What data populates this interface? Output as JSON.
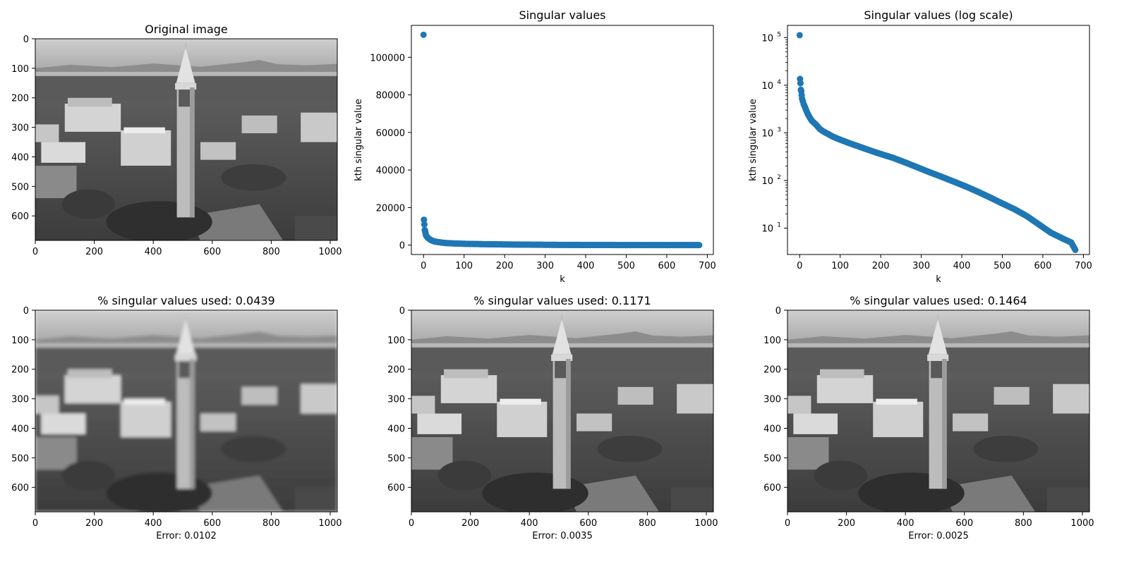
{
  "figure": {
    "panels": [
      {
        "kind": "image",
        "title": "Original image",
        "xticks": [
          "0",
          "200",
          "400",
          "600",
          "800",
          "1000"
        ],
        "yticks": [
          "0",
          "100",
          "200",
          "300",
          "400",
          "500",
          "600"
        ],
        "image": "original",
        "xlabel": ""
      },
      {
        "kind": "scatter",
        "title": "Singular values",
        "xlabel": "k",
        "ylabel": "kth singular value",
        "xticks": [
          "0",
          "100",
          "200",
          "300",
          "400",
          "500",
          "600",
          "700"
        ],
        "yticks": [
          "0",
          "20000",
          "40000",
          "60000",
          "80000",
          "100000"
        ],
        "scale": "linear"
      },
      {
        "kind": "scatter",
        "title": "Singular values (log scale)",
        "xlabel": "k",
        "ylabel": "kth singular value",
        "xticks": [
          "0",
          "100",
          "200",
          "300",
          "400",
          "500",
          "600",
          "700"
        ],
        "yticks": [
          "10",
          "10",
          "10",
          "10",
          "10"
        ],
        "yexps": [
          "1",
          "2",
          "3",
          "4",
          "5"
        ],
        "scale": "log"
      },
      {
        "kind": "image",
        "title": "% singular values used: 0.0439",
        "xticks": [
          "0",
          "200",
          "400",
          "600",
          "800",
          "1000"
        ],
        "yticks": [
          "0",
          "100",
          "200",
          "300",
          "400",
          "500",
          "600"
        ],
        "image": "blurry",
        "xlabel": "Error: 0.0102"
      },
      {
        "kind": "image",
        "title": "% singular values used: 0.1171",
        "xticks": [
          "0",
          "200",
          "400",
          "600",
          "800",
          "1000"
        ],
        "yticks": [
          "0",
          "100",
          "200",
          "300",
          "400",
          "500",
          "600"
        ],
        "image": "sharp",
        "xlabel": "Error: 0.0035"
      },
      {
        "kind": "image",
        "title": "% singular values used: 0.1464",
        "xticks": [
          "0",
          "200",
          "400",
          "600",
          "800",
          "1000"
        ],
        "yticks": [
          "0",
          "100",
          "200",
          "300",
          "400",
          "500",
          "600"
        ],
        "image": "sharp",
        "xlabel": "Error: 0.0025"
      }
    ]
  },
  "chart_data": [
    {
      "type": "scatter",
      "title": "Singular values",
      "xlabel": "k",
      "ylabel": "kth singular value",
      "xlim": [
        -30,
        715
      ],
      "ylim": [
        -5000,
        117000
      ],
      "yscale": "linear",
      "color": "#1f77b4",
      "x": [
        0,
        1,
        2,
        3,
        4,
        5,
        6,
        8,
        10,
        13,
        16,
        20,
        25,
        30,
        40,
        50,
        60,
        70,
        80,
        90,
        100,
        120,
        140,
        160,
        180,
        200,
        230,
        260,
        290,
        320,
        350,
        380,
        410,
        440,
        470,
        500,
        530,
        560,
        590,
        620,
        650,
        670,
        680
      ],
      "y": [
        112000,
        13500,
        11000,
        8000,
        7500,
        6200,
        5200,
        4600,
        4000,
        3500,
        3000,
        2500,
        2100,
        1800,
        1500,
        1200,
        1050,
        950,
        850,
        780,
        720,
        620,
        540,
        470,
        410,
        360,
        300,
        240,
        190,
        150,
        120,
        95,
        75,
        58,
        44,
        33,
        25,
        18,
        12,
        8,
        6,
        5,
        3.5
      ]
    },
    {
      "type": "scatter",
      "title": "Singular values (log scale)",
      "xlabel": "k",
      "ylabel": "kth singular value",
      "xlim": [
        -30,
        715
      ],
      "ylim": [
        2.8,
        180000
      ],
      "yscale": "log",
      "color": "#1f77b4",
      "x": [
        0,
        1,
        2,
        3,
        4,
        5,
        6,
        8,
        10,
        13,
        16,
        20,
        25,
        30,
        40,
        50,
        60,
        70,
        80,
        90,
        100,
        120,
        140,
        160,
        180,
        200,
        230,
        260,
        290,
        320,
        350,
        380,
        410,
        440,
        470,
        500,
        530,
        560,
        590,
        620,
        650,
        670,
        680
      ],
      "y": [
        112000,
        13500,
        11000,
        8000,
        7500,
        6200,
        5200,
        4600,
        4000,
        3500,
        3000,
        2500,
        2100,
        1800,
        1500,
        1200,
        1050,
        950,
        850,
        780,
        720,
        620,
        540,
        470,
        410,
        360,
        300,
        240,
        190,
        150,
        120,
        95,
        75,
        58,
        44,
        33,
        25,
        18,
        12,
        8,
        6,
        5,
        3.5
      ]
    }
  ]
}
